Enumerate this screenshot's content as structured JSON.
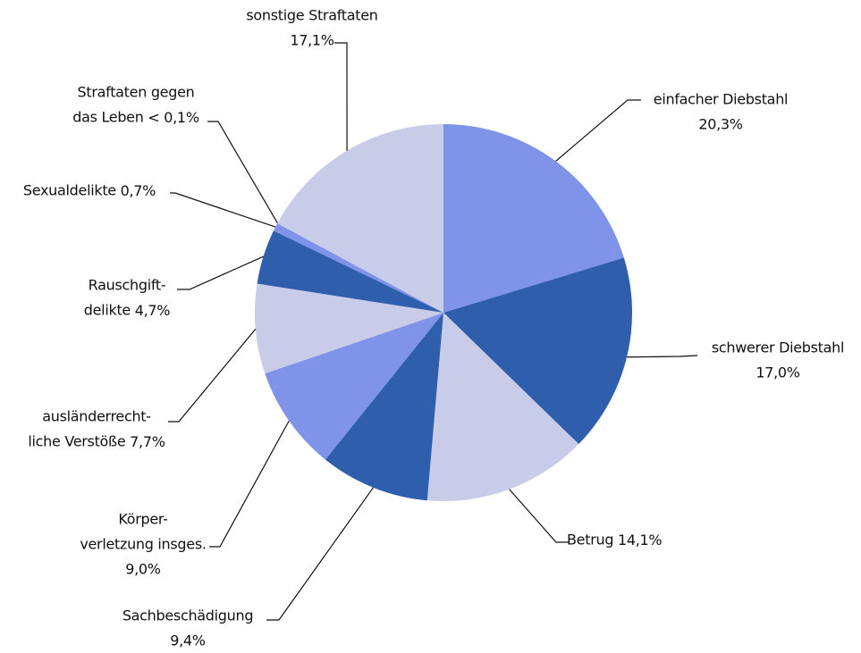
{
  "chart_data": {
    "type": "pie",
    "categories": [
      [
        "einfacher Diebstahl"
      ],
      [
        "schwerer Diebstahl"
      ],
      [
        "Betrug"
      ],
      [
        "Sachbeschädigung"
      ],
      [
        "Körper-",
        "verletzung insges."
      ],
      [
        "ausländerrecht-",
        "liche Verstöße"
      ],
      [
        "Rauschgift-",
        "delikte"
      ],
      [
        "Sexualdelikte"
      ],
      [
        "Straftaten gegen",
        "das Leben"
      ],
      [
        "sonstige Straftaten"
      ]
    ],
    "values": [
      20.3,
      17.0,
      14.1,
      9.4,
      9.0,
      7.7,
      4.7,
      0.7,
      0.05,
      17.1
    ],
    "value_labels": [
      "20,3%",
      "17,0%",
      "14,1%",
      "9,4%",
      "9,0%",
      "7,7%",
      "4,7%",
      "0,7%",
      "< 0,1%",
      "17,1%"
    ],
    "colors": [
      "#7f93e8",
      "#2f5eac",
      "#c8cce9",
      "#2f5eac",
      "#7f93e8",
      "#c8cce9",
      "#2f5eac",
      "#7f93e8",
      "#c8cce9",
      "#c8cce9"
    ]
  }
}
